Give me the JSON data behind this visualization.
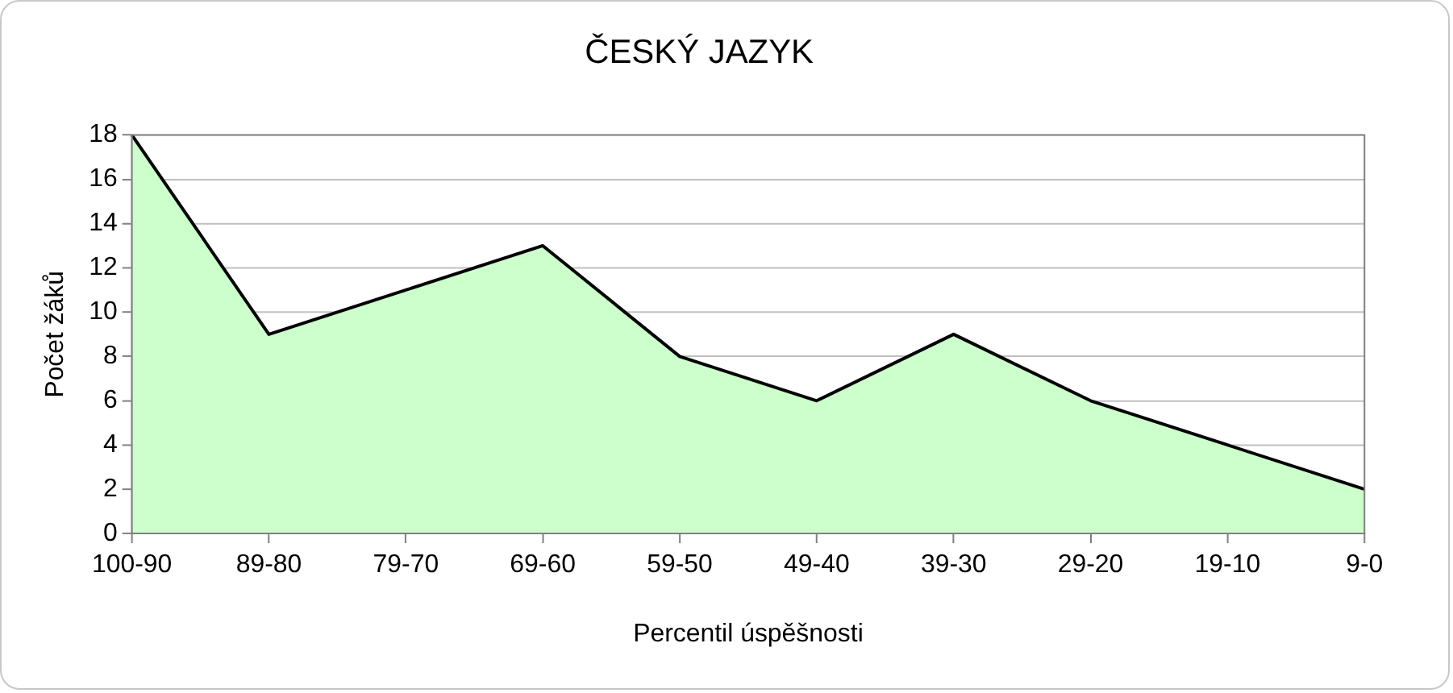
{
  "chart_data": {
    "type": "area",
    "title": "ČESKÝ JAZYK",
    "xlabel": "Percentil úspěšnosti",
    "ylabel": "Počet žáků",
    "categories": [
      "100-90",
      "89-80",
      "79-70",
      "69-60",
      "59-50",
      "49-40",
      "39-30",
      "29-20",
      "19-10",
      "9-0"
    ],
    "series": [
      {
        "color": "#ccffcc",
        "values": [
          18,
          9,
          11,
          13,
          8,
          6,
          9,
          6,
          4,
          2
        ]
      }
    ],
    "ylim": [
      0,
      18
    ],
    "yticks": [
      0,
      2,
      4,
      6,
      8,
      10,
      12,
      14,
      16,
      18
    ],
    "grid": "y",
    "legend": false
  }
}
